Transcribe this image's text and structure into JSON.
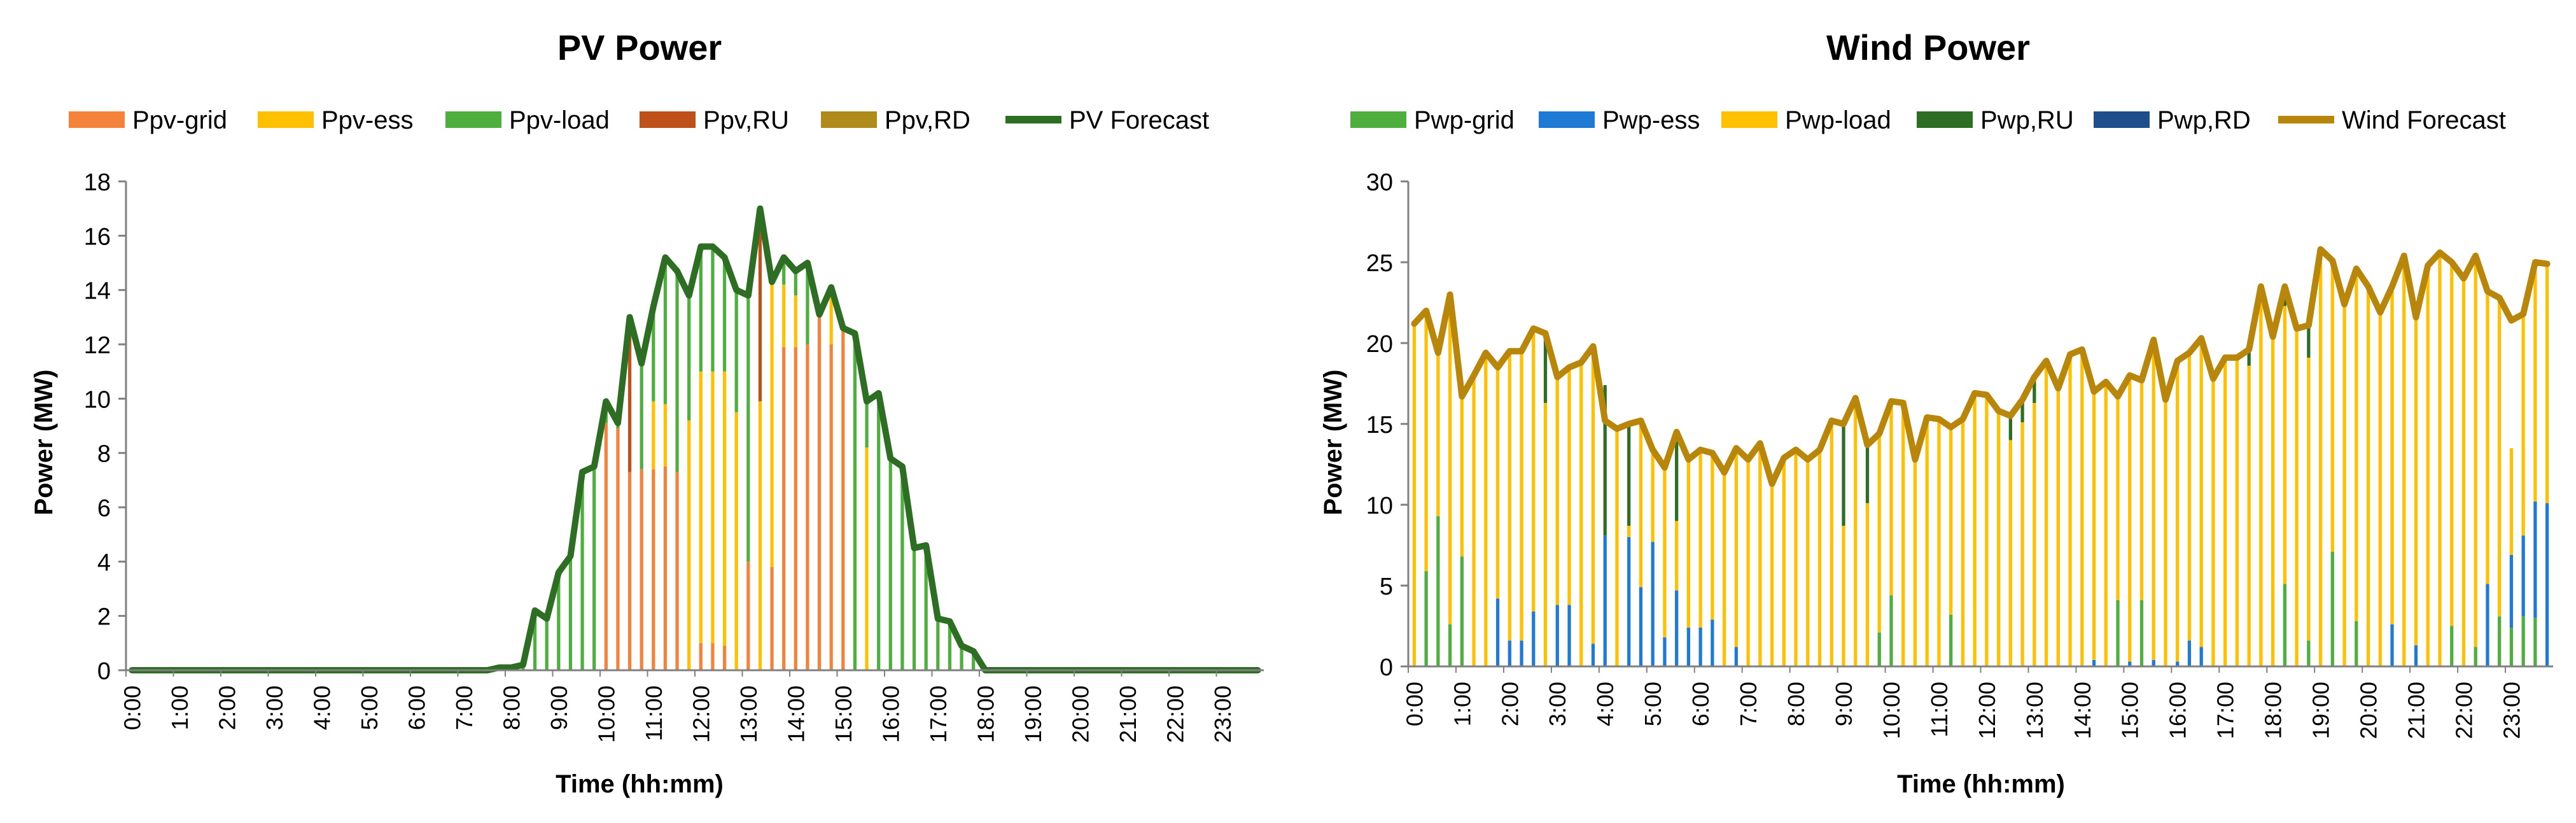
{
  "chart_data": [
    {
      "id": "pv",
      "type": "bar",
      "stacked": true,
      "title": "PV Power",
      "xlabel": "Time (hh:mm)",
      "ylabel": "Power (MW)",
      "ylim": [
        0,
        18
      ],
      "yticks": [
        "0",
        "2",
        "4",
        "6",
        "8",
        "10",
        "12",
        "14",
        "16",
        "18"
      ],
      "interval_minutes": 15,
      "hour_labels": [
        "0:00",
        "1:00",
        "2:00",
        "3:00",
        "4:00",
        "5:00",
        "6:00",
        "7:00",
        "8:00",
        "9:00",
        "10:00",
        "11:00",
        "12:00",
        "13:00",
        "14:00",
        "15:00",
        "16:00",
        "17:00",
        "18:00",
        "19:00",
        "20:00",
        "21:00",
        "22:00",
        "23:00"
      ],
      "grid": false,
      "legend_position": "top",
      "legend": [
        {
          "key": "grid",
          "label": "Ppv-grid",
          "color": "#F4823A",
          "kind": "bar"
        },
        {
          "key": "ess",
          "label": "Ppv-ess",
          "color": "#FFC000",
          "kind": "bar"
        },
        {
          "key": "load",
          "label": "Ppv-load",
          "color": "#4EAE3E",
          "kind": "bar"
        },
        {
          "key": "ru",
          "label": "Ppv,RU",
          "color": "#C0501A",
          "kind": "bar"
        },
        {
          "key": "rd",
          "label": "Ppv,RD",
          "color": "#B08A1A",
          "kind": "bar"
        },
        {
          "key": "forecast",
          "label": "PV Forecast",
          "color": "#2E6E24",
          "kind": "line"
        }
      ],
      "forecast": [
        0,
        0,
        0,
        0,
        0,
        0,
        0,
        0,
        0,
        0,
        0,
        0,
        0,
        0,
        0,
        0,
        0,
        0,
        0,
        0,
        0,
        0,
        0,
        0,
        0,
        0,
        0,
        0,
        0,
        0,
        0,
        0.1,
        0.1,
        0.2,
        2.2,
        1.9,
        3.6,
        4.2,
        7.3,
        7.5,
        9.9,
        9.1,
        13.0,
        11.3,
        13.4,
        15.2,
        14.7,
        13.8,
        15.6,
        15.6,
        15.2,
        14.0,
        13.8,
        17.0,
        14.3,
        15.2,
        14.7,
        15.0,
        13.1,
        14.1,
        12.6,
        12.4,
        9.9,
        10.2,
        7.8,
        7.5,
        4.5,
        4.6,
        1.9,
        1.8,
        0.9,
        0.7,
        0,
        0,
        0,
        0,
        0,
        0,
        0,
        0,
        0,
        0,
        0,
        0,
        0,
        0,
        0,
        0,
        0,
        0,
        0,
        0,
        0,
        0,
        0,
        0
      ],
      "series": [
        {
          "key": "grid",
          "name": "Ppv-grid",
          "values": [
            0,
            0,
            0,
            0,
            0,
            0,
            0,
            0,
            0,
            0,
            0,
            0,
            0,
            0,
            0,
            0,
            0,
            0,
            0,
            0,
            0,
            0,
            0,
            0,
            0,
            0,
            0,
            0,
            0,
            0,
            0,
            0,
            0,
            0,
            0,
            0,
            0,
            0,
            0,
            0,
            9.1,
            8.9,
            7.3,
            7.4,
            7.4,
            7.5,
            7.3,
            0,
            1.0,
            1.0,
            0.9,
            0,
            4.0,
            0,
            3.8,
            11.9,
            11.9,
            12.0,
            13.1,
            12.0,
            12.6,
            0,
            0,
            0,
            0,
            0,
            0,
            0,
            0,
            0,
            0,
            0,
            0,
            0,
            0,
            0,
            0,
            0,
            0,
            0,
            0,
            0,
            0,
            0,
            0,
            0,
            0,
            0,
            0,
            0,
            0,
            0,
            0,
            0,
            0,
            0
          ]
        },
        {
          "key": "ess",
          "name": "Ppv-ess",
          "values": [
            0,
            0,
            0,
            0,
            0,
            0,
            0,
            0,
            0,
            0,
            0,
            0,
            0,
            0,
            0,
            0,
            0,
            0,
            0,
            0,
            0,
            0,
            0,
            0,
            0,
            0,
            0,
            0,
            0,
            0,
            0,
            0,
            0,
            0,
            0,
            0,
            0,
            0,
            0,
            0,
            0,
            0,
            0,
            0,
            2.5,
            2.3,
            0,
            9.2,
            10.0,
            10.0,
            10.1,
            9.5,
            0,
            9.9,
            10.5,
            2.3,
            1.9,
            0,
            0,
            2.1,
            0,
            0,
            8.2,
            0,
            0,
            0,
            0,
            0,
            0,
            0,
            0,
            0,
            0,
            0,
            0,
            0,
            0,
            0,
            0,
            0,
            0,
            0,
            0,
            0,
            0,
            0,
            0,
            0,
            0,
            0,
            0,
            0,
            0,
            0,
            0,
            0
          ]
        },
        {
          "key": "load",
          "name": "Ppv-load",
          "values": [
            0,
            0,
            0,
            0,
            0,
            0,
            0,
            0,
            0,
            0,
            0,
            0,
            0,
            0,
            0,
            0,
            0,
            0,
            0,
            0,
            0,
            0,
            0,
            0,
            0,
            0,
            0,
            0,
            0,
            0,
            0,
            0.1,
            0.1,
            0.2,
            2.2,
            1.9,
            3.6,
            4.2,
            7.3,
            7.5,
            0.8,
            0.2,
            0,
            3.9,
            3.5,
            5.4,
            7.4,
            4.6,
            4.6,
            4.6,
            4.2,
            4.5,
            9.8,
            0,
            0,
            1.0,
            0.9,
            3.0,
            0,
            0,
            0,
            12.4,
            1.7,
            10.2,
            7.8,
            7.5,
            4.5,
            4.6,
            1.9,
            1.8,
            0.9,
            0.7,
            0,
            0,
            0,
            0,
            0,
            0,
            0,
            0,
            0,
            0,
            0,
            0,
            0,
            0,
            0,
            0,
            0,
            0,
            0,
            0,
            0,
            0,
            0,
            0
          ]
        },
        {
          "key": "ru",
          "name": "Ppv,RU",
          "values": [
            0,
            0,
            0,
            0,
            0,
            0,
            0,
            0,
            0,
            0,
            0,
            0,
            0,
            0,
            0,
            0,
            0,
            0,
            0,
            0,
            0,
            0,
            0,
            0,
            0,
            0,
            0,
            0,
            0,
            0,
            0,
            0,
            0,
            0,
            0,
            0,
            0,
            0,
            0,
            0,
            0,
            0,
            5.7,
            0,
            0,
            0,
            0,
            0,
            0,
            0,
            0,
            0,
            0,
            7.1,
            0,
            0,
            0,
            0,
            0,
            0,
            0,
            0,
            0,
            0,
            0,
            0,
            0,
            0,
            0,
            0,
            0,
            0,
            0,
            0,
            0,
            0,
            0,
            0,
            0,
            0,
            0,
            0,
            0,
            0,
            0,
            0,
            0,
            0,
            0,
            0,
            0,
            0,
            0,
            0,
            0,
            0
          ]
        },
        {
          "key": "rd",
          "name": "Ppv,RD",
          "values": [
            0,
            0,
            0,
            0,
            0,
            0,
            0,
            0,
            0,
            0,
            0,
            0,
            0,
            0,
            0,
            0,
            0,
            0,
            0,
            0,
            0,
            0,
            0,
            0,
            0,
            0,
            0,
            0,
            0,
            0,
            0,
            0,
            0,
            0,
            0,
            0,
            0,
            0,
            0,
            0,
            0,
            0,
            0,
            0,
            0,
            0,
            0,
            0,
            0,
            0,
            0,
            0,
            0,
            0,
            0,
            0,
            0,
            0,
            0,
            0,
            0,
            0,
            0,
            0,
            0,
            0,
            0,
            0,
            0,
            0,
            0,
            0,
            0,
            0,
            0,
            0,
            0,
            0,
            0,
            0,
            0,
            0,
            0,
            0,
            0,
            0,
            0,
            0,
            0,
            0,
            0,
            0,
            0,
            0,
            0,
            0
          ]
        }
      ]
    },
    {
      "id": "wind",
      "type": "bar",
      "stacked": true,
      "title": "Wind Power",
      "xlabel": "Time (hh:mm)",
      "ylabel": "Power (MW)",
      "ylim": [
        0,
        30
      ],
      "yticks": [
        "0",
        "5",
        "10",
        "15",
        "20",
        "25",
        "30"
      ],
      "interval_minutes": 15,
      "hour_labels": [
        "0:00",
        "1:00",
        "2:00",
        "3:00",
        "4:00",
        "5:00",
        "6:00",
        "7:00",
        "8:00",
        "9:00",
        "10:00",
        "11:00",
        "12:00",
        "13:00",
        "14:00",
        "15:00",
        "16:00",
        "17:00",
        "18:00",
        "19:00",
        "20:00",
        "21:00",
        "22:00",
        "23:00"
      ],
      "grid": false,
      "legend_position": "top",
      "legend": [
        {
          "key": "grid",
          "label": "Pwp-grid",
          "color": "#4EAE3E",
          "kind": "bar"
        },
        {
          "key": "ess",
          "label": "Pwp-ess",
          "color": "#1F7AD6",
          "kind": "bar"
        },
        {
          "key": "load",
          "label": "Pwp-load",
          "color": "#FFC000",
          "kind": "bar"
        },
        {
          "key": "ru",
          "label": "Pwp,RU",
          "color": "#2E6E24",
          "kind": "bar"
        },
        {
          "key": "rd",
          "label": "Pwp,RD",
          "color": "#1F4E8C",
          "kind": "bar"
        },
        {
          "key": "forecast",
          "label": "Wind Forecast",
          "color": "#B8860B",
          "kind": "line"
        }
      ],
      "forecast": [
        21.2,
        22.0,
        19.4,
        23.0,
        16.7,
        18.0,
        19.4,
        18.5,
        19.5,
        19.5,
        20.9,
        20.6,
        17.9,
        18.5,
        18.8,
        19.8,
        15.2,
        14.7,
        15.0,
        15.2,
        13.4,
        12.3,
        14.5,
        12.8,
        13.4,
        13.2,
        12.0,
        13.5,
        12.8,
        13.8,
        11.3,
        12.9,
        13.4,
        12.8,
        13.4,
        15.2,
        15.0,
        16.6,
        13.7,
        14.4,
        16.4,
        16.3,
        12.8,
        15.4,
        15.3,
        14.8,
        15.3,
        16.9,
        16.8,
        15.8,
        15.5,
        16.5,
        17.9,
        18.9,
        17.2,
        19.3,
        19.6,
        17.0,
        17.6,
        16.7,
        18.0,
        17.7,
        20.2,
        16.5,
        18.9,
        19.4,
        20.3,
        17.8,
        19.1,
        19.1,
        19.6,
        23.5,
        20.4,
        23.5,
        20.9,
        21.1,
        25.8,
        25.1,
        22.4,
        24.6,
        23.5,
        21.9,
        23.5,
        25.4,
        21.6,
        24.8,
        25.6,
        25.0,
        24.0,
        25.4,
        23.2,
        22.8,
        21.4,
        21.8,
        25.0,
        24.9
      ]
    }
  ]
}
